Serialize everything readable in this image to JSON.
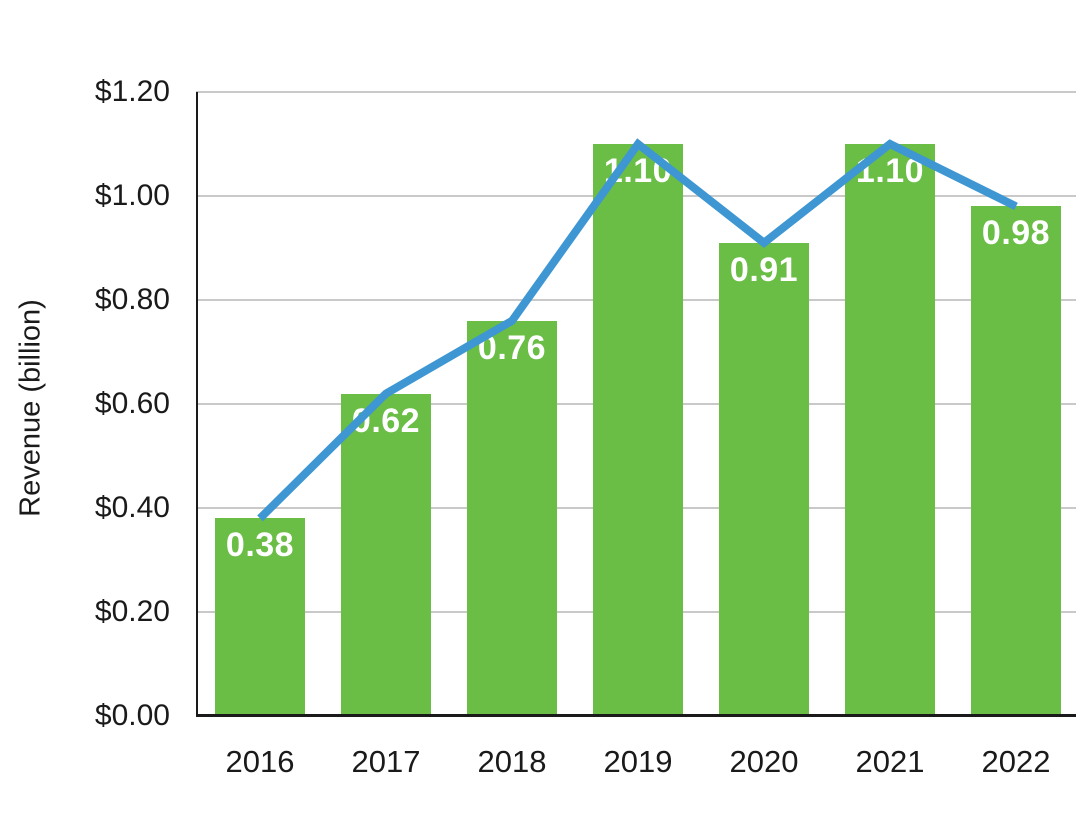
{
  "chart_data": {
    "type": "bar",
    "title": "",
    "xlabel": "",
    "ylabel": "Revenue (billion)",
    "categories": [
      "2016",
      "2017",
      "2018",
      "2019",
      "2020",
      "2021",
      "2022"
    ],
    "values": [
      0.38,
      0.62,
      0.76,
      1.1,
      0.91,
      1.1,
      0.98
    ],
    "value_labels": [
      "0.38",
      "0.62",
      "0.76",
      "1.10",
      "0.91",
      "1.10",
      "0.98"
    ],
    "line_overlay": {
      "name": "revenue-trend-line",
      "values": [
        0.38,
        0.62,
        0.76,
        1.1,
        0.91,
        1.1,
        0.98
      ]
    },
    "ylim": [
      0,
      1.2
    ],
    "ytick_step": 0.2,
    "ytick_labels": [
      "$0.00",
      "$0.20",
      "$0.40",
      "$0.60",
      "$0.80",
      "$1.00",
      "$1.20"
    ],
    "grid": true,
    "legend": null,
    "colors": {
      "bar": "#6abd45",
      "line": "#3e96d2",
      "bar_label": "#ffffff",
      "grid": "#c9c9c9",
      "axis": "#1a1a1a",
      "tick_text": "#1a1a1a"
    }
  }
}
